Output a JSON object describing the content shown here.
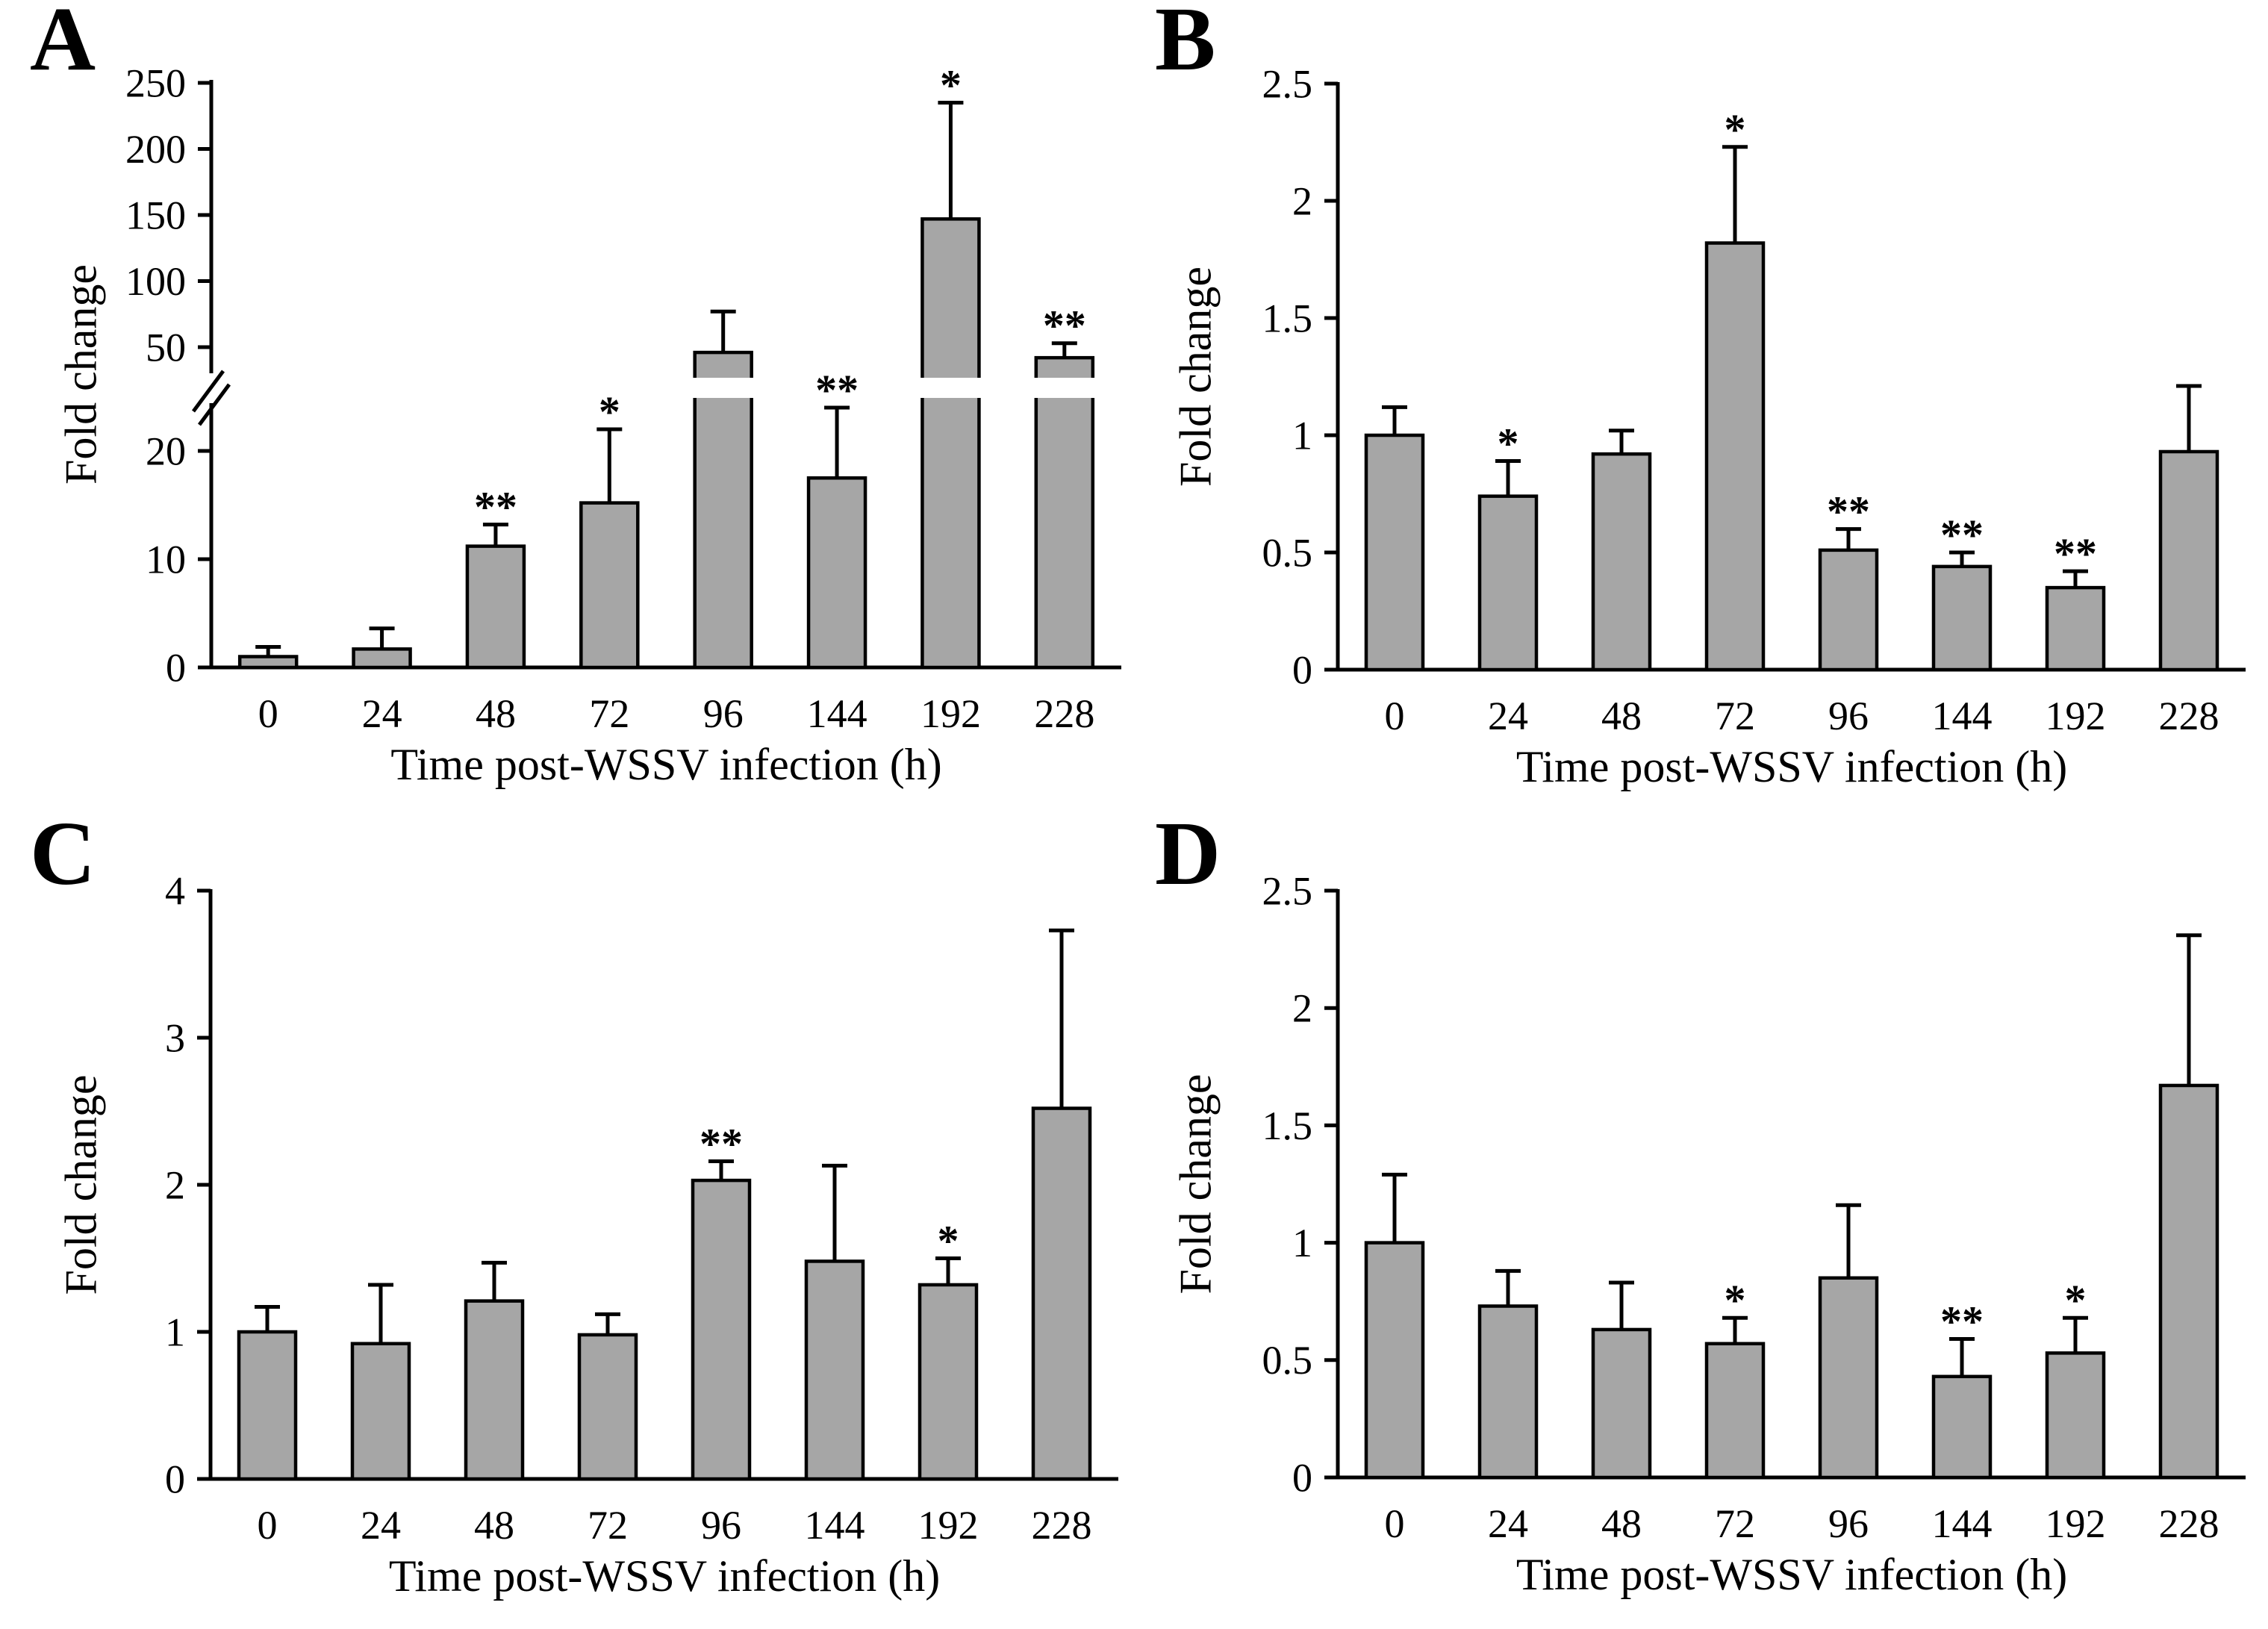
{
  "figure": {
    "background": "#ffffff",
    "bar_fill": "#a6a6a6",
    "bar_stroke": "#000000",
    "text_color": "#000000"
  },
  "chart_data": [
    {
      "panel": "A",
      "type": "bar",
      "xlabel": "Time post-WSSV infection (h)",
      "ylabel": "Fold change",
      "categories": [
        "0",
        "24",
        "48",
        "72",
        "96",
        "144",
        "192",
        "228"
      ],
      "values": [
        1.0,
        1.7,
        11.2,
        15.2,
        46,
        17.5,
        147,
        42
      ],
      "error_top": [
        1.9,
        3.6,
        13.2,
        22,
        77,
        24,
        235,
        53
      ],
      "significance": [
        "",
        "",
        "**",
        "*",
        "",
        "**",
        "*",
        "**"
      ],
      "y_axis": {
        "broken": true,
        "lower_ticks": [
          "0",
          "10",
          "20"
        ],
        "upper_ticks": [
          "50",
          "100",
          "150",
          "200",
          "250"
        ],
        "ylim": [
          0,
          250
        ]
      },
      "legend": "none",
      "grid": "off"
    },
    {
      "panel": "B",
      "type": "bar",
      "xlabel": "Time post-WSSV infection (h)",
      "ylabel": "Fold change",
      "categories": [
        "0",
        "24",
        "48",
        "72",
        "96",
        "144",
        "192",
        "228"
      ],
      "values": [
        1.0,
        0.74,
        0.92,
        1.82,
        0.51,
        0.44,
        0.35,
        0.93
      ],
      "error_top": [
        1.12,
        0.89,
        1.02,
        2.23,
        0.6,
        0.5,
        0.42,
        1.21
      ],
      "significance": [
        "",
        "*",
        "",
        "*",
        "**",
        "**",
        "**",
        ""
      ],
      "y_axis": {
        "broken": false,
        "ticks": [
          "0",
          "0.5",
          "1",
          "1.5",
          "2",
          "2.5"
        ],
        "ylim": [
          0,
          2.5
        ]
      },
      "legend": "none",
      "grid": "off"
    },
    {
      "panel": "C",
      "type": "bar",
      "xlabel": "Time post-WSSV infection (h)",
      "ylabel": "Fold change",
      "categories": [
        "0",
        "24",
        "48",
        "72",
        "96",
        "144",
        "192",
        "228"
      ],
      "values": [
        1.0,
        0.92,
        1.21,
        0.98,
        2.03,
        1.48,
        1.32,
        2.52
      ],
      "error_top": [
        1.17,
        1.32,
        1.47,
        1.12,
        2.16,
        2.13,
        1.5,
        3.73
      ],
      "significance": [
        "",
        "",
        "",
        "",
        "**",
        "",
        "*",
        ""
      ],
      "y_axis": {
        "broken": false,
        "ticks": [
          "0",
          "1",
          "2",
          "3",
          "4"
        ],
        "ylim": [
          0,
          4
        ]
      },
      "legend": "none",
      "grid": "off"
    },
    {
      "panel": "D",
      "type": "bar",
      "xlabel": "Time post-WSSV infection (h)",
      "ylabel": "Fold change",
      "categories": [
        "0",
        "24",
        "48",
        "72",
        "96",
        "144",
        "192",
        "228"
      ],
      "values": [
        1.0,
        0.73,
        0.63,
        0.57,
        0.85,
        0.43,
        0.53,
        1.67
      ],
      "error_top": [
        1.29,
        0.88,
        0.83,
        0.68,
        1.16,
        0.59,
        0.68,
        2.31
      ],
      "significance": [
        "",
        "",
        "",
        "*",
        "",
        "**",
        "*",
        ""
      ],
      "y_axis": {
        "broken": false,
        "ticks": [
          "0",
          "0.5",
          "1",
          "1.5",
          "2",
          "2.5"
        ],
        "ylim": [
          0,
          2.5
        ]
      },
      "legend": "none",
      "grid": "off"
    }
  ]
}
